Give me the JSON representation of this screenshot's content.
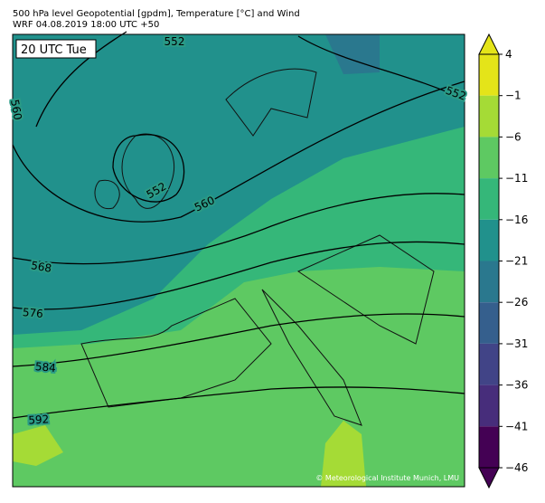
{
  "header": {
    "title": "500 hPa level Geopotential [gpdm], Temperature [°C] and Wind",
    "subtitle": "WRF 04.08.2019 18:00 UTC +50"
  },
  "map": {
    "time_label": "20 UTC Tue",
    "credit": "© Meteorological Institute Munich, LMU",
    "contour_labels": [
      "552",
      "552",
      "560",
      "552",
      "560",
      "568",
      "576",
      "584",
      "592"
    ]
  },
  "colorbar": {
    "range": [
      -46,
      4
    ],
    "ticks": [
      4,
      {
        "value": -1,
        "label": "−1"
      },
      {
        "value": -6,
        "label": "−6"
      },
      {
        "value": -11,
        "label": "−11"
      },
      {
        "value": -16,
        "label": "−16"
      },
      {
        "value": -21,
        "label": "−21"
      },
      {
        "value": -26,
        "label": "−26"
      },
      {
        "value": -31,
        "label": "−31"
      },
      {
        "value": -36,
        "label": "−36"
      },
      {
        "value": -41,
        "label": "−41"
      },
      {
        "value": -46,
        "label": "−46"
      }
    ],
    "colors": [
      "#e4e419",
      "#a5db36",
      "#5ec962",
      "#35b779",
      "#21918c",
      "#2a788e",
      "#355f8d",
      "#414487",
      "#472d7b",
      "#440154"
    ]
  }
}
